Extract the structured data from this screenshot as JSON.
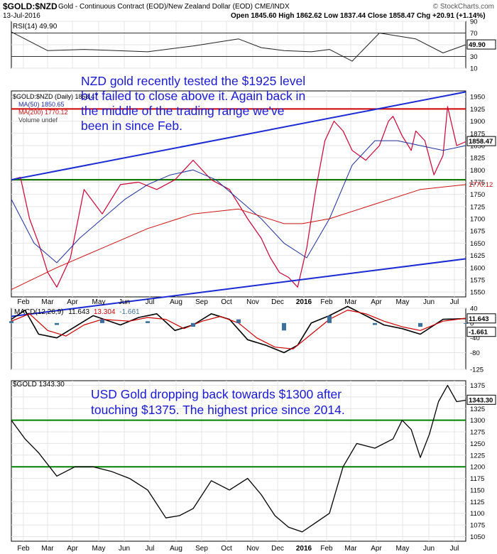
{
  "header": {
    "symbol": "$GOLD:$NZD",
    "description": "Gold - Continuous Contract (EOD)/New Zealand Dollar (EOD) CME/INDX",
    "date": "13-Jul-2016",
    "ohlc": "Open 1845.60  High 1862.62  Low 1837.44  Close 1858.47  Chg +20.91 (+1.14%)",
    "watermark": "© StockCharts.com"
  },
  "colors": {
    "price": "#cc0033",
    "ma50": "#1f2f9e",
    "ma200": "#cc1111",
    "trend": "#1a2bd4",
    "hline_red": "#cc0000",
    "hline_green": "#008000",
    "annotation": "#1a1ad4",
    "macd_hist": "#3b6fa0",
    "grid": "#e4e4e4",
    "frame": "#000000"
  },
  "x_labels": [
    "Feb",
    "Mar",
    "Apr",
    "May",
    "Jun",
    "Jul",
    "Aug",
    "Sep",
    "Oct",
    "Nov",
    "Dec",
    "2016",
    "Feb",
    "Mar",
    "Apr",
    "May",
    "Jun",
    "Jul"
  ],
  "chart_data": [
    {
      "type": "line",
      "panel": "rsi",
      "title": "RSI(14) 49.90",
      "ylim": [
        10,
        90
      ],
      "yticks": [
        10,
        30,
        50,
        70,
        90
      ],
      "current_label": "49.90",
      "reference_lines": [
        30,
        70
      ],
      "series": [
        {
          "name": "RSI(14)",
          "x": [
            0,
            8,
            16,
            30,
            40,
            50,
            55,
            60,
            66,
            70,
            75,
            81,
            89,
            95,
            100
          ],
          "values": [
            72,
            40,
            42,
            38,
            48,
            60,
            45,
            40,
            38,
            42,
            22,
            70,
            60,
            36,
            50
          ]
        }
      ]
    },
    {
      "type": "line",
      "panel": "price",
      "title": "$GOLD:$NZD",
      "ylim": [
        1540,
        1962
      ],
      "yticks": [
        1550,
        1575,
        1600,
        1625,
        1650,
        1675,
        1700,
        1725,
        1750,
        1775,
        1800,
        1825,
        1850,
        1875,
        1900,
        1925,
        1950
      ],
      "current_label": "1858.47",
      "ma200_label": "1770.12",
      "annotation": "NZD gold recently tested the $1925 level but failed to close above it. Again back in the middle of the trading range we've been in since Feb.",
      "legend": [
        "$GOLD:$NZD (Daily) 1858.47",
        "MA(50) 1850.65",
        "MA(200) 1770.12",
        "Volume undef"
      ],
      "horizontal_lines": [
        {
          "color": "red",
          "value": 1925
        },
        {
          "color": "red",
          "value": 1780
        },
        {
          "color": "green",
          "value": 1780
        }
      ],
      "trend_lines": [
        {
          "name": "upper",
          "x": [
            0,
            100
          ],
          "values": [
            1780,
            1960
          ]
        },
        {
          "name": "lower",
          "x": [
            0,
            100
          ],
          "values": [
            1500,
            1618
          ]
        }
      ],
      "series": [
        {
          "name": "$GOLD:$NZD",
          "x": [
            0,
            2,
            4,
            6,
            8,
            10,
            13,
            16,
            20,
            24,
            28,
            32,
            36,
            40,
            44,
            48,
            52,
            55,
            57,
            59,
            61,
            63,
            65,
            66,
            67,
            69,
            71,
            73,
            75,
            78,
            81,
            83,
            84,
            86,
            88,
            89,
            91,
            93,
            95,
            96,
            97,
            98,
            100
          ],
          "values": [
            1780,
            1785,
            1700,
            1650,
            1590,
            1560,
            1620,
            1760,
            1710,
            1770,
            1775,
            1760,
            1780,
            1820,
            1780,
            1760,
            1700,
            1660,
            1620,
            1590,
            1580,
            1560,
            1640,
            1700,
            1760,
            1860,
            1900,
            1880,
            1840,
            1820,
            1850,
            1900,
            1910,
            1870,
            1840,
            1880,
            1860,
            1790,
            1830,
            1930,
            1890,
            1850,
            1858
          ]
        },
        {
          "name": "MA(50)",
          "x": [
            0,
            5,
            10,
            15,
            20,
            25,
            30,
            35,
            40,
            45,
            50,
            55,
            60,
            65,
            70,
            75,
            80,
            85,
            90,
            95,
            100
          ],
          "values": [
            1740,
            1650,
            1610,
            1660,
            1700,
            1740,
            1770,
            1790,
            1800,
            1780,
            1740,
            1700,
            1650,
            1620,
            1700,
            1810,
            1860,
            1860,
            1850,
            1840,
            1850
          ]
        },
        {
          "name": "MA(200)",
          "x": [
            0,
            10,
            20,
            30,
            40,
            50,
            60,
            64,
            70,
            80,
            90,
            100
          ],
          "values": [
            1555,
            1600,
            1640,
            1680,
            1710,
            1720,
            1690,
            1690,
            1700,
            1730,
            1760,
            1770
          ]
        }
      ]
    },
    {
      "type": "line",
      "panel": "macd",
      "title": "MACD(12,26,9) 11.643, 13.304, -1.661",
      "legend": [
        "MACD(12,26,9)",
        "11.643",
        "13.304",
        "-1.661"
      ],
      "ylim": [
        -125,
        40
      ],
      "yticks": [
        40,
        0,
        -40,
        -80,
        -125
      ],
      "current_labels": [
        "11.643",
        "-1.661"
      ],
      "series": [
        {
          "name": "MACD",
          "x": [
            0,
            3,
            6,
            10,
            14,
            18,
            24,
            28,
            32,
            36,
            40,
            44,
            48,
            52,
            56,
            60,
            63,
            66,
            70,
            74,
            78,
            82,
            86,
            90,
            95,
            100
          ],
          "values": [
            10,
            35,
            -30,
            -40,
            -10,
            20,
            -5,
            15,
            25,
            -20,
            -5,
            25,
            10,
            -45,
            -60,
            -80,
            -60,
            0,
            20,
            45,
            20,
            -5,
            -15,
            -30,
            10,
            12
          ]
        },
        {
          "name": "Signal",
          "x": [
            0,
            4,
            8,
            12,
            16,
            20,
            26,
            30,
            34,
            38,
            42,
            46,
            50,
            54,
            58,
            62,
            66,
            70,
            74,
            78,
            82,
            86,
            90,
            95,
            100
          ],
          "values": [
            5,
            25,
            -20,
            -35,
            -5,
            10,
            5,
            15,
            10,
            -15,
            5,
            18,
            0,
            -40,
            -65,
            -70,
            -30,
            10,
            35,
            25,
            5,
            -10,
            -20,
            5,
            13
          ]
        },
        {
          "name": "Histogram",
          "x": [
            0,
            10,
            20,
            30,
            40,
            50,
            60,
            70,
            80,
            90,
            100
          ],
          "values": [
            5,
            -5,
            10,
            5,
            -10,
            10,
            -20,
            20,
            -5,
            -10,
            -2
          ]
        }
      ]
    },
    {
      "type": "line",
      "panel": "usd_gold",
      "title": "$GOLD 1343.30",
      "ylim": [
        1040,
        1385
      ],
      "yticks": [
        1050,
        1075,
        1100,
        1125,
        1150,
        1175,
        1200,
        1225,
        1250,
        1275,
        1300,
        1325,
        1350,
        1375
      ],
      "current_label": "1343.30",
      "annotation": "USD Gold dropping back towards $1300 after touching $1375. The highest price since 2014.",
      "horizontal_lines": [
        {
          "color": "green",
          "value": 1300
        },
        {
          "color": "green",
          "value": 1200
        }
      ],
      "series": [
        {
          "name": "$GOLD",
          "x": [
            0,
            3,
            6,
            10,
            14,
            18,
            22,
            26,
            30,
            34,
            37,
            40,
            44,
            48,
            52,
            55,
            58,
            61,
            64,
            67,
            70,
            73,
            76,
            80,
            84,
            86,
            88,
            90,
            92,
            94,
            96,
            98,
            100
          ],
          "values": [
            1300,
            1260,
            1230,
            1180,
            1200,
            1200,
            1190,
            1175,
            1150,
            1090,
            1095,
            1110,
            1170,
            1150,
            1175,
            1140,
            1095,
            1070,
            1060,
            1080,
            1100,
            1200,
            1250,
            1240,
            1260,
            1300,
            1280,
            1220,
            1270,
            1340,
            1375,
            1340,
            1343
          ]
        }
      ]
    }
  ]
}
